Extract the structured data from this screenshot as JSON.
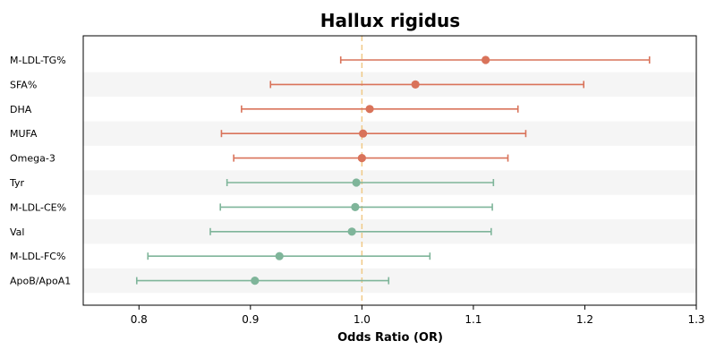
{
  "chart_data": {
    "type": "forest",
    "title": "Hallux rigidus",
    "xlabel": "Odds Ratio (OR)",
    "ylabel": "",
    "xlim": [
      0.75,
      1.3
    ],
    "xticks": [
      "0.8",
      "0.9",
      "1.0",
      "1.1",
      "1.2",
      "1.3"
    ],
    "reference_line": 1.0,
    "grid": false,
    "alternating_row_shading": true,
    "colors": {
      "risk": "#d9735a",
      "protective": "#7fb59a",
      "reference": "#f0c987",
      "row_shade": "#f5f5f5"
    },
    "rows": [
      {
        "label": "M-LDL-TG%",
        "or": 1.111,
        "lower": 0.981,
        "upper": 1.258,
        "group": "risk"
      },
      {
        "label": "SFA%",
        "or": 1.048,
        "lower": 0.918,
        "upper": 1.199,
        "group": "risk"
      },
      {
        "label": "DHA",
        "or": 1.007,
        "lower": 0.892,
        "upper": 1.14,
        "group": "risk"
      },
      {
        "label": "MUFA",
        "or": 1.001,
        "lower": 0.874,
        "upper": 1.147,
        "group": "risk"
      },
      {
        "label": "Omega-3",
        "or": 1.0,
        "lower": 0.885,
        "upper": 1.131,
        "group": "risk"
      },
      {
        "label": "Tyr",
        "or": 0.995,
        "lower": 0.879,
        "upper": 1.118,
        "group": "protective"
      },
      {
        "label": "M-LDL-CE%",
        "or": 0.994,
        "lower": 0.873,
        "upper": 1.117,
        "group": "protective"
      },
      {
        "label": "Val",
        "or": 0.991,
        "lower": 0.864,
        "upper": 1.116,
        "group": "protective"
      },
      {
        "label": "M-LDL-FC%",
        "or": 0.926,
        "lower": 0.808,
        "upper": 1.061,
        "group": "protective"
      },
      {
        "label": "ApoB/ApoA1",
        "or": 0.904,
        "lower": 0.798,
        "upper": 1.024,
        "group": "protective"
      }
    ]
  }
}
